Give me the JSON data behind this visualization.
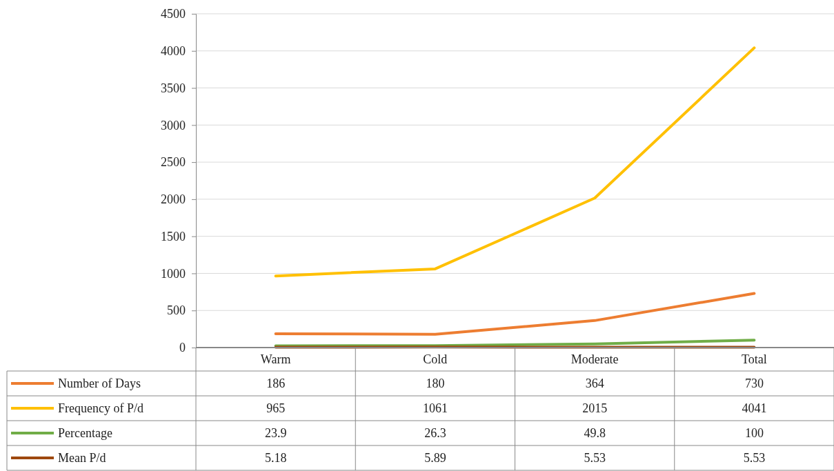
{
  "chart_data": {
    "type": "line",
    "categories": [
      "Warm",
      "Cold",
      "Moderate",
      "Total"
    ],
    "series": [
      {
        "name": "Number of Days",
        "color": "#ed7d31",
        "values": [
          186,
          180,
          364,
          730
        ]
      },
      {
        "name": "Frequency of P/d",
        "color": "#ffc000",
        "values": [
          965,
          1061,
          2015,
          4041
        ]
      },
      {
        "name": "Percentage",
        "color": "#70ad47",
        "values": [
          23.9,
          26.3,
          49.8,
          100
        ]
      },
      {
        "name": "Mean P/d",
        "color": "#9e480e",
        "values": [
          5.18,
          5.89,
          5.53,
          5.53
        ]
      }
    ],
    "ylim": [
      0,
      4500
    ],
    "yticks": [
      0,
      500,
      1000,
      1500,
      2000,
      2500,
      3000,
      3500,
      4000,
      4500
    ],
    "grid": "y",
    "legend": "bottom",
    "data_labels": true,
    "marker": "none",
    "line_style": "solid"
  }
}
